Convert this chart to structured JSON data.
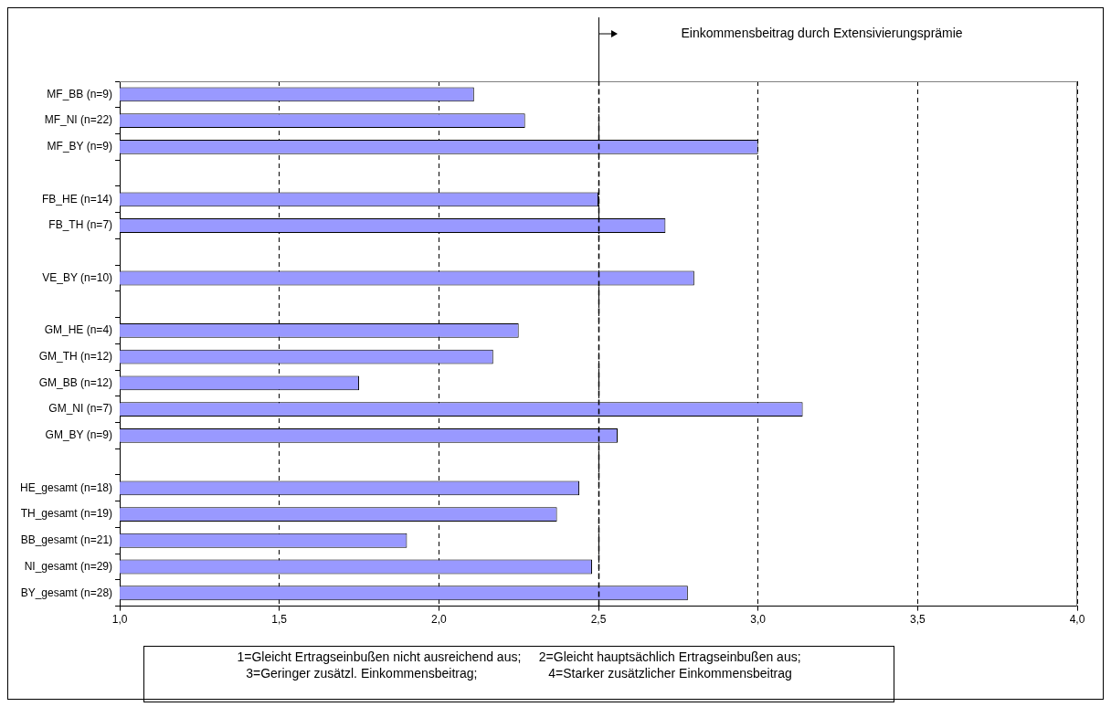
{
  "chart_data": {
    "type": "bar",
    "orientation": "horizontal",
    "categories": [
      "MF_BB (n=9)",
      "MF_NI (n=22)",
      "MF_BY (n=9)",
      null,
      "FB_HE (n=14)",
      "FB_TH (n=7)",
      null,
      "VE_BY (n=10)",
      null,
      "GM_HE (n=4)",
      "GM_TH (n=12)",
      "GM_BB (n=12)",
      "GM_NI (n=7)",
      "GM_BY (n=9)",
      null,
      "HE_gesamt (n=18)",
      "TH_gesamt (n=19)",
      "BB_gesamt (n=21)",
      "NI_gesamt (n=29)",
      "BY_gesamt (n=28)"
    ],
    "values": [
      2.11,
      2.27,
      3.0,
      null,
      2.5,
      2.71,
      null,
      2.8,
      null,
      2.25,
      2.17,
      1.75,
      3.14,
      2.56,
      null,
      2.44,
      2.37,
      1.9,
      2.48,
      2.78
    ],
    "color": "#9999ff",
    "xlim": [
      1,
      4
    ],
    "xticks": [
      {
        "value": 1,
        "label": "1,0"
      },
      {
        "value": 1.5,
        "label": "1,5"
      },
      {
        "value": 2,
        "label": "2,0"
      },
      {
        "value": 2.5,
        "label": "2,5"
      },
      {
        "value": 3,
        "label": "3,0"
      },
      {
        "value": 3.5,
        "label": "3,5"
      },
      {
        "value": 4,
        "label": "4,0"
      }
    ],
    "grid": "x",
    "line_style": "dashed",
    "legend": false,
    "ref_lines": [
      {
        "axis": "x",
        "value": 2.5,
        "label": "Einkommensbeitrag durch Extensivierungsprämie"
      }
    ],
    "annotations": [
      "1=Gleicht Ertragseinbußen nicht ausreichend aus;     2=Gleicht hauptsächlich Ertragseinbußen aus;",
      "3=Geringer zusätzl. Einkommensbeitrag;                    4=Starker zusätzlicher Einkommensbeitrag"
    ]
  }
}
